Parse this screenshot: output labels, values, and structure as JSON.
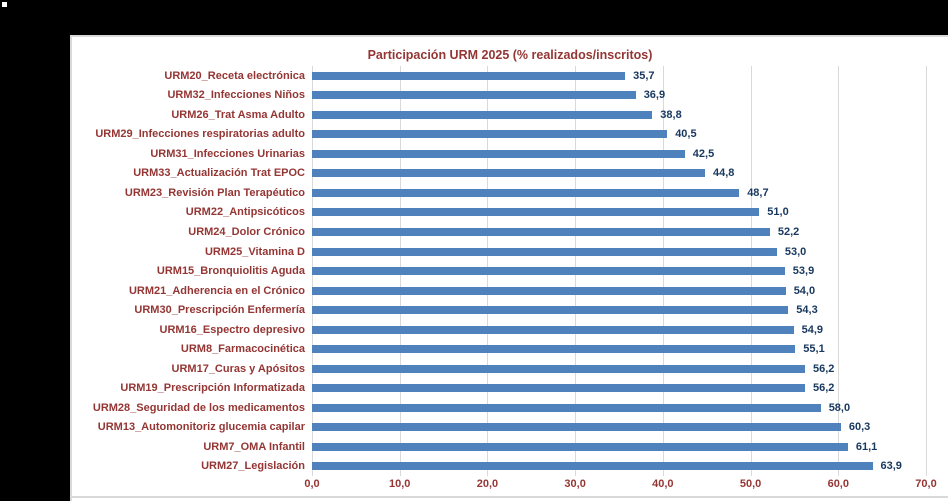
{
  "chart_data": {
    "type": "bar",
    "orientation": "horizontal",
    "title": "Participación URM 2025 (% realizados/inscritos)",
    "categories": [
      "URM20_Receta electrónica",
      "URM32_Infecciones Niños",
      "URM26_Trat Asma Adulto",
      "URM29_Infecciones respiratorias adulto",
      "URM31_Infecciones Urinarias",
      "URM33_Actualización Trat EPOC",
      "URM23_Revisión Plan Terapéutico",
      "URM22_Antipsicóticos",
      "URM24_Dolor Crónico",
      "URM25_Vitamina D",
      "URM15_Bronquiolitis Aguda",
      "URM21_Adherencia en el Crónico",
      "URM30_Prescripción Enfermería",
      "URM16_Espectro depresivo",
      "URM8_Farmacocinética",
      "URM17_Curas y Apósitos",
      "URM19_Prescripción Informatizada",
      "URM28_Seguridad de los medicamentos",
      "URM13_Automonitoriz glucemia capilar",
      "URM7_OMA Infantil",
      "URM27_Legislación"
    ],
    "values": [
      35.7,
      36.9,
      38.8,
      40.5,
      42.5,
      44.8,
      48.7,
      51.0,
      52.2,
      53.0,
      53.9,
      54.0,
      54.3,
      54.9,
      55.1,
      56.2,
      56.2,
      58.0,
      60.3,
      61.1,
      63.9
    ],
    "value_labels": [
      "35,7",
      "36,9",
      "38,8",
      "40,5",
      "42,5",
      "44,8",
      "48,7",
      "51,0",
      "52,2",
      "53,0",
      "53,9",
      "54,0",
      "54,3",
      "54,9",
      "55,1",
      "56,2",
      "56,2",
      "58,0",
      "60,3",
      "61,1",
      "63,9"
    ],
    "x_ticks": [
      "0,0",
      "10,0",
      "20,0",
      "30,0",
      "40,0",
      "50,0",
      "60,0",
      "70,0"
    ],
    "xlim": [
      0,
      70
    ],
    "grid": true,
    "legend": "none",
    "colors": {
      "bar": "#4F81BD",
      "title": "#943634",
      "category_label": "#943634",
      "value_label": "#17375E",
      "axis_label": "#943634",
      "gridline": "#D9D9D9",
      "panel_background": "#FFFFFF",
      "page_background": "#000000",
      "panel_border": "#D9D9D9"
    }
  }
}
